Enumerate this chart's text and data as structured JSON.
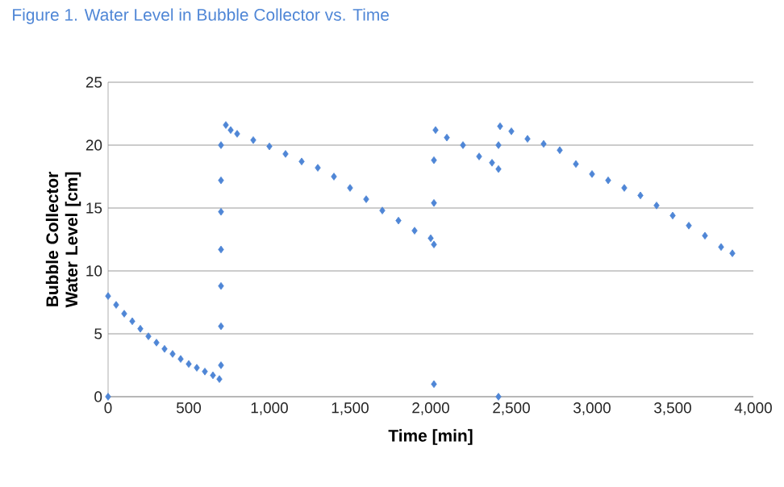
{
  "chart_data": {
    "type": "scatter",
    "title": "Figure 1. Water Level in Bubble Collector vs. Time",
    "xlabel": "Time [min]",
    "ylabel": "Bubble Collector Water Level [cm]",
    "xlim": [
      0,
      4000
    ],
    "ylim": [
      0,
      25
    ],
    "xticks": [
      0,
      500,
      {
        "value": 1000,
        "label": "1,000"
      },
      {
        "value": 1500,
        "label": "1,500"
      },
      {
        "value": 2000,
        "label": "2,000"
      },
      {
        "value": 2500,
        "label": "2,500"
      },
      {
        "value": 3000,
        "label": "3,000"
      },
      {
        "value": 3500,
        "label": "3,500"
      },
      {
        "value": 4000,
        "label": "4,000"
      }
    ],
    "yticks": [
      0,
      5,
      10,
      15,
      20,
      25
    ],
    "grid": "y",
    "marker": "diamond",
    "series": [
      {
        "color": "#4f86d6",
        "x": [
          0,
          0,
          50,
          100,
          150,
          200,
          250,
          300,
          350,
          400,
          450,
          500,
          550,
          600,
          650,
          690,
          700,
          700,
          700,
          700,
          700,
          700,
          700,
          730,
          760,
          800,
          900,
          1000,
          1100,
          1200,
          1300,
          1400,
          1500,
          1600,
          1700,
          1800,
          1900,
          2000,
          2020,
          2020,
          2020,
          2020,
          2030,
          2100,
          2200,
          2300,
          2380,
          2420,
          2420,
          2420,
          2430,
          2500,
          2600,
          2700,
          2800,
          2900,
          3000,
          3100,
          3200,
          3300,
          3400,
          3500,
          3600,
          3700,
          3800,
          3870
        ],
        "values": [
          0,
          8.0,
          7.3,
          6.6,
          6.0,
          5.4,
          4.8,
          4.3,
          3.8,
          3.4,
          3.0,
          2.6,
          2.3,
          2.0,
          1.7,
          1.4,
          2.5,
          5.6,
          8.8,
          11.7,
          14.7,
          17.2,
          20.0,
          21.6,
          21.2,
          20.9,
          20.4,
          19.9,
          19.3,
          18.7,
          18.2,
          17.5,
          16.6,
          15.7,
          14.8,
          14.0,
          13.2,
          12.6,
          12.1,
          1.0,
          15.4,
          18.8,
          21.2,
          20.6,
          20.0,
          19.1,
          18.6,
          18.1,
          0,
          20.0,
          21.5,
          21.1,
          20.5,
          20.1,
          19.6,
          18.5,
          17.7,
          17.2,
          16.6,
          16.0,
          15.2,
          14.4,
          13.6,
          12.8,
          11.9,
          11.4
        ]
      }
    ]
  }
}
